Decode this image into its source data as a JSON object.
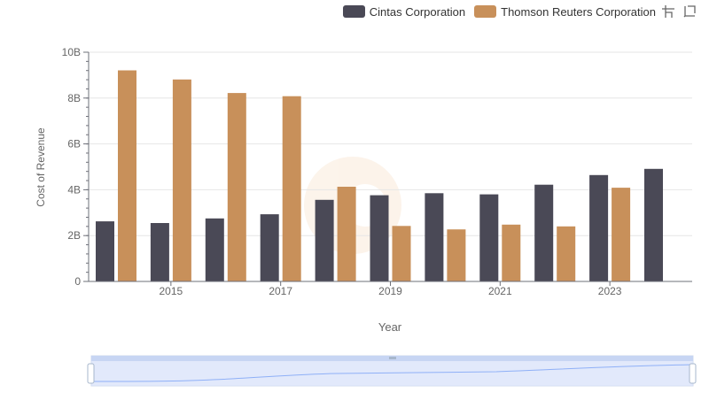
{
  "legend": {
    "items": [
      {
        "label": "Cintas Corporation",
        "color": "#4a4956"
      },
      {
        "label": "Thomson Reuters Corporation",
        "color": "#c8905a"
      }
    ]
  },
  "toolbox": {
    "icons": [
      "zoom-area-icon",
      "zoom-reset-icon"
    ]
  },
  "chart_data": {
    "type": "bar",
    "title": "",
    "xlabel": "Year",
    "ylabel": "Cost of Revenue",
    "categories": [
      2014,
      2015,
      2016,
      2017,
      2018,
      2019,
      2020,
      2021,
      2022,
      2023,
      2024
    ],
    "xticks": [
      "2015",
      "2017",
      "2019",
      "2021",
      "2023"
    ],
    "ylim": [
      0,
      10
    ],
    "yticks": [
      {
        "value": 0,
        "label": "0"
      },
      {
        "value": 2,
        "label": "2B"
      },
      {
        "value": 4,
        "label": "4B"
      },
      {
        "value": 6,
        "label": "6B"
      },
      {
        "value": 8,
        "label": "8B"
      },
      {
        "value": 10,
        "label": "10B"
      }
    ],
    "grid": true,
    "legend_position": "top-right",
    "series": [
      {
        "name": "Cintas Corporation",
        "color": "#4a4956",
        "values": [
          2.62,
          2.55,
          2.75,
          2.93,
          3.56,
          3.76,
          3.85,
          3.8,
          4.22,
          4.64,
          4.91
        ]
      },
      {
        "name": "Thomson Reuters Corporation",
        "color": "#c8905a",
        "values": [
          9.21,
          8.81,
          8.22,
          8.08,
          4.13,
          2.42,
          2.27,
          2.48,
          2.4,
          4.09,
          null
        ]
      }
    ]
  },
  "zoom_slider": {
    "range": [
      0,
      1
    ],
    "handle_color": "#a7b7cc",
    "fill_color": "#d5e0f9",
    "line_color": "#8fb0f7"
  }
}
